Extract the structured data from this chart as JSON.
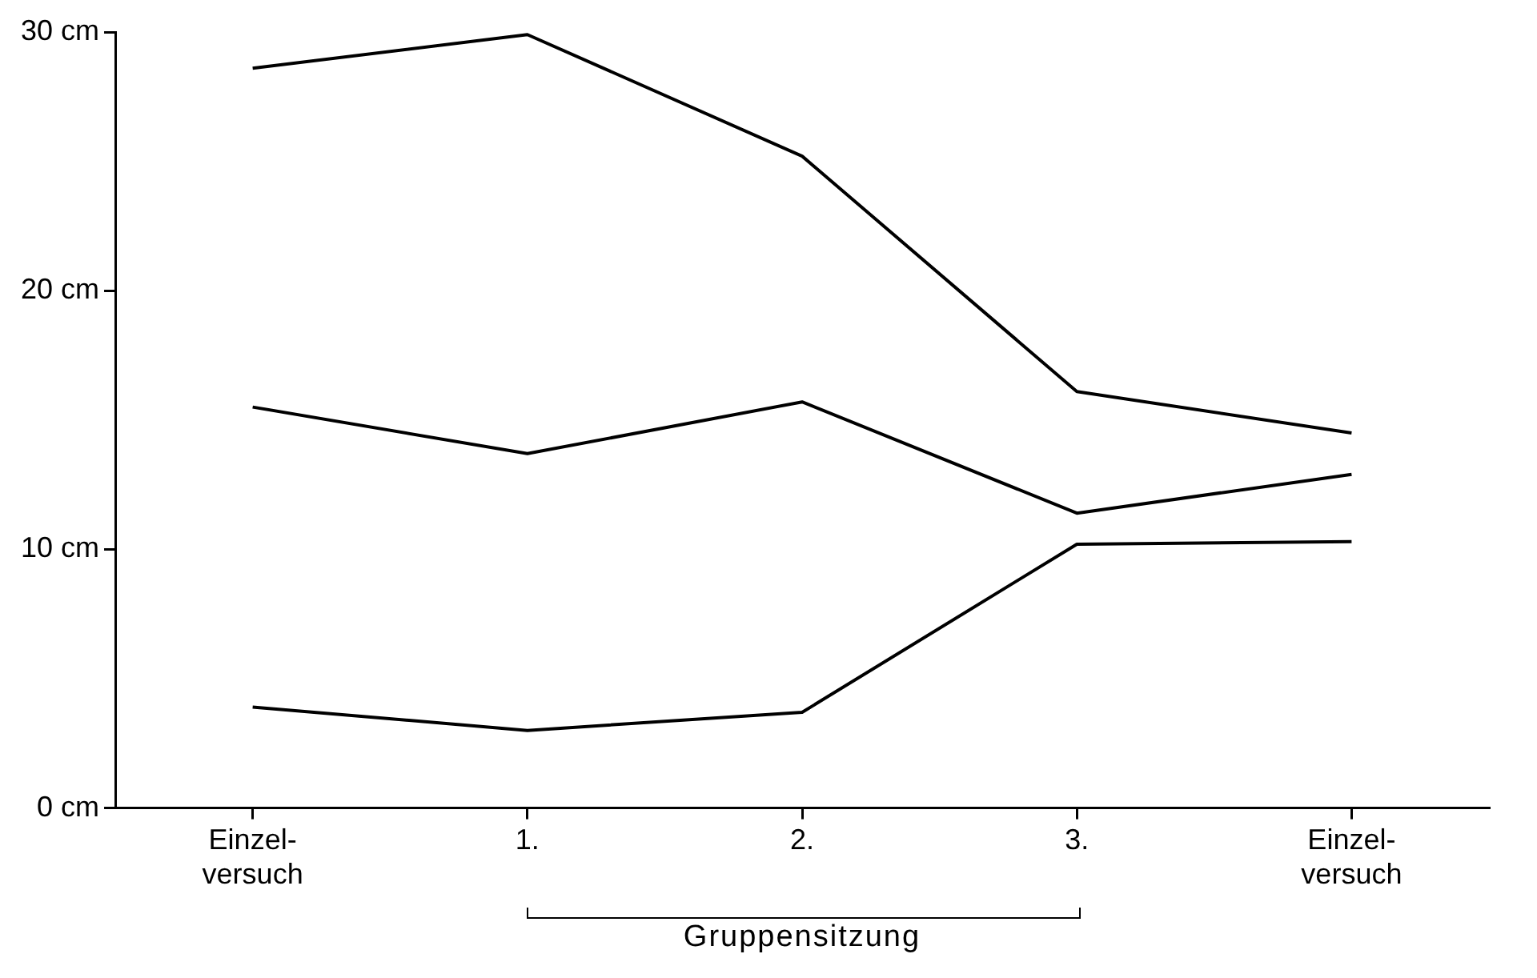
{
  "chart_data": {
    "type": "line",
    "categories": [
      "Einzel-\nversuch",
      "1.",
      "2.",
      "3.",
      "Einzel-\nversuch"
    ],
    "series": [
      {
        "color": "#000000",
        "values": [
          28.6,
          29.9,
          25.2,
          16.1,
          14.5
        ]
      },
      {
        "color": "#000000",
        "values": [
          15.5,
          13.7,
          15.7,
          11.4,
          12.9
        ]
      },
      {
        "color": "#000000",
        "values": [
          3.9,
          3.0,
          3.7,
          10.2,
          10.3
        ]
      }
    ],
    "ylim": [
      0,
      30
    ],
    "yticks": [
      {
        "value": 0,
        "label": "0 cm"
      },
      {
        "value": 10,
        "label": "10 cm"
      },
      {
        "value": 20,
        "label": "20 cm"
      },
      {
        "value": 30,
        "label": "30 cm"
      }
    ],
    "annotations": [
      "Gruppensitzung"
    ],
    "grid": false,
    "legend": false,
    "marker": "none",
    "line_style": "solid"
  }
}
